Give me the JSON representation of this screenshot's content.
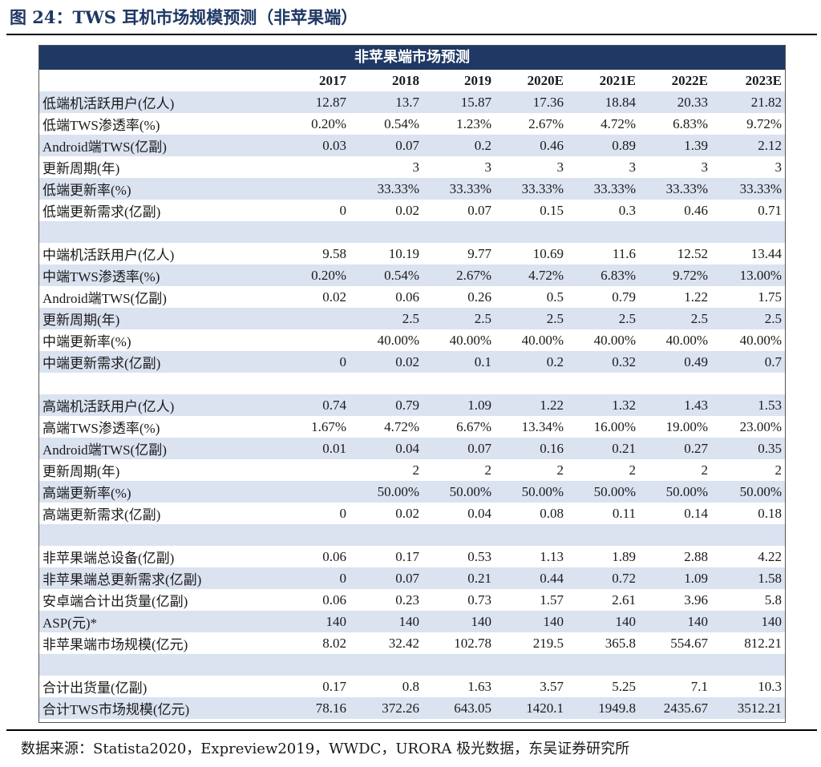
{
  "figure": {
    "title": "图 24：TWS 耳机市场规模预测（非苹果端）",
    "source": "数据来源：Statista2020，Expreview2019，WWDC，URORA 极光数据，东吴证券研究所"
  },
  "table": {
    "banner": "非苹果端市场预测",
    "columns": [
      "2017",
      "2018",
      "2019",
      "2020E",
      "2021E",
      "2022E",
      "2023E"
    ],
    "rows": [
      {
        "label": "低端机活跃用户(亿人)",
        "values": [
          "12.87",
          "13.7",
          "15.87",
          "17.36",
          "18.84",
          "20.33",
          "21.82"
        ],
        "shade": true
      },
      {
        "label": "低端TWS渗透率(%)",
        "values": [
          "0.20%",
          "0.54%",
          "1.23%",
          "2.67%",
          "4.72%",
          "6.83%",
          "9.72%"
        ],
        "shade": false
      },
      {
        "label": "Android端TWS(亿副)",
        "values": [
          "0.03",
          "0.07",
          "0.2",
          "0.46",
          "0.89",
          "1.39",
          "2.12"
        ],
        "shade": true
      },
      {
        "label": "更新周期(年)",
        "values": [
          "",
          "3",
          "3",
          "3",
          "3",
          "3",
          "3"
        ],
        "shade": false
      },
      {
        "label": "低端更新率(%)",
        "values": [
          "",
          "33.33%",
          "33.33%",
          "33.33%",
          "33.33%",
          "33.33%",
          "33.33%"
        ],
        "shade": true
      },
      {
        "label": "低端更新需求(亿副)",
        "values": [
          "0",
          "0.02",
          "0.07",
          "0.15",
          "0.3",
          "0.46",
          "0.71"
        ],
        "shade": false
      },
      {
        "label": "",
        "values": [
          "",
          "",
          "",
          "",
          "",
          "",
          ""
        ],
        "shade": true,
        "spacer": true
      },
      {
        "label": "中端机活跃用户(亿人)",
        "values": [
          "9.58",
          "10.19",
          "9.77",
          "10.69",
          "11.6",
          "12.52",
          "13.44"
        ],
        "shade": false
      },
      {
        "label": "中端TWS渗透率(%)",
        "values": [
          "0.20%",
          "0.54%",
          "2.67%",
          "4.72%",
          "6.83%",
          "9.72%",
          "13.00%"
        ],
        "shade": true
      },
      {
        "label": "Android端TWS(亿副)",
        "values": [
          "0.02",
          "0.06",
          "0.26",
          "0.5",
          "0.79",
          "1.22",
          "1.75"
        ],
        "shade": false
      },
      {
        "label": "更新周期(年)",
        "values": [
          "",
          "2.5",
          "2.5",
          "2.5",
          "2.5",
          "2.5",
          "2.5"
        ],
        "shade": true
      },
      {
        "label": "中端更新率(%)",
        "values": [
          "",
          "40.00%",
          "40.00%",
          "40.00%",
          "40.00%",
          "40.00%",
          "40.00%"
        ],
        "shade": false
      },
      {
        "label": "中端更新需求(亿副)",
        "values": [
          "0",
          "0.02",
          "0.1",
          "0.2",
          "0.32",
          "0.49",
          "0.7"
        ],
        "shade": true
      },
      {
        "label": "",
        "values": [
          "",
          "",
          "",
          "",
          "",
          "",
          ""
        ],
        "shade": false,
        "spacer": true
      },
      {
        "label": "高端机活跃用户(亿人)",
        "values": [
          "0.74",
          "0.79",
          "1.09",
          "1.22",
          "1.32",
          "1.43",
          "1.53"
        ],
        "shade": true
      },
      {
        "label": "高端TWS渗透率(%)",
        "values": [
          "1.67%",
          "4.72%",
          "6.67%",
          "13.34%",
          "16.00%",
          "19.00%",
          "23.00%"
        ],
        "shade": false
      },
      {
        "label": "Android端TWS(亿副)",
        "values": [
          "0.01",
          "0.04",
          "0.07",
          "0.16",
          "0.21",
          "0.27",
          "0.35"
        ],
        "shade": true
      },
      {
        "label": "更新周期(年)",
        "values": [
          "",
          "2",
          "2",
          "2",
          "2",
          "2",
          "2"
        ],
        "shade": false
      },
      {
        "label": "高端更新率(%)",
        "values": [
          "",
          "50.00%",
          "50.00%",
          "50.00%",
          "50.00%",
          "50.00%",
          "50.00%"
        ],
        "shade": true
      },
      {
        "label": "高端更新需求(亿副)",
        "values": [
          "0",
          "0.02",
          "0.04",
          "0.08",
          "0.11",
          "0.14",
          "0.18"
        ],
        "shade": false
      },
      {
        "label": "",
        "values": [
          "",
          "",
          "",
          "",
          "",
          "",
          ""
        ],
        "shade": true,
        "spacer": true
      },
      {
        "label": "非苹果端总设备(亿副)",
        "values": [
          "0.06",
          "0.17",
          "0.53",
          "1.13",
          "1.89",
          "2.88",
          "4.22"
        ],
        "shade": false
      },
      {
        "label": "非苹果端总更新需求(亿副)",
        "values": [
          "0",
          "0.07",
          "0.21",
          "0.44",
          "0.72",
          "1.09",
          "1.58"
        ],
        "shade": true
      },
      {
        "label": "安卓端合计出货量(亿副)",
        "values": [
          "0.06",
          "0.23",
          "0.73",
          "1.57",
          "2.61",
          "3.96",
          "5.8"
        ],
        "shade": false
      },
      {
        "label": "ASP(元)*",
        "values": [
          "140",
          "140",
          "140",
          "140",
          "140",
          "140",
          "140"
        ],
        "shade": true
      },
      {
        "label": "非苹果端市场规模(亿元)",
        "values": [
          "8.02",
          "32.42",
          "102.78",
          "219.5",
          "365.8",
          "554.67",
          "812.21"
        ],
        "shade": false
      },
      {
        "label": "",
        "values": [
          "",
          "",
          "",
          "",
          "",
          "",
          ""
        ],
        "shade": true,
        "spacer": true
      },
      {
        "label": "合计出货量(亿副)",
        "values": [
          "0.17",
          "0.8",
          "1.63",
          "3.57",
          "5.25",
          "7.1",
          "10.3"
        ],
        "shade": false
      },
      {
        "label": "合计TWS市场规模(亿元)",
        "values": [
          "78.16",
          "372.26",
          "643.05",
          "1420.1",
          "1949.8",
          "2435.67",
          "3512.21"
        ],
        "shade": true
      }
    ]
  }
}
